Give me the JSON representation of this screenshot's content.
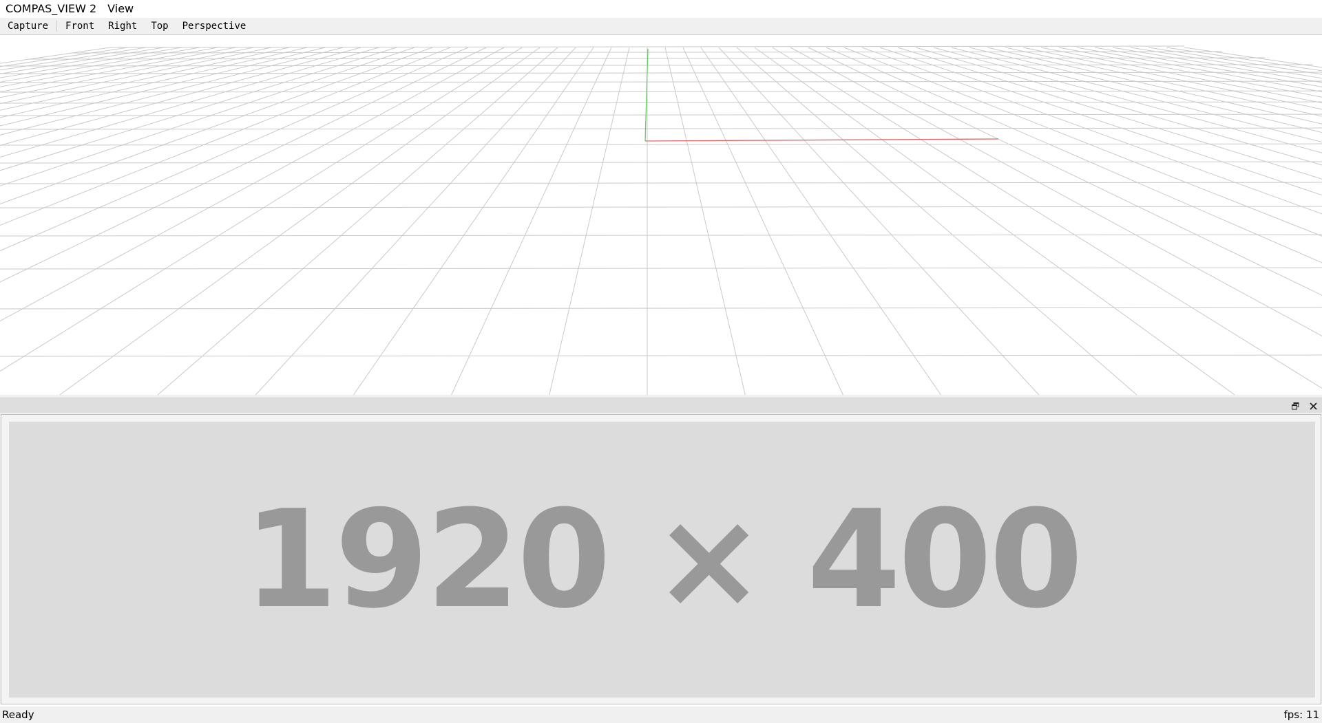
{
  "menubar": {
    "items": [
      {
        "label": "COMPAS_VIEW 2"
      },
      {
        "label": "View"
      }
    ]
  },
  "toolbar": {
    "items": [
      {
        "label": "Capture"
      },
      {
        "label": "Front"
      },
      {
        "label": "Right"
      },
      {
        "label": "Top"
      },
      {
        "label": "Perspective"
      }
    ]
  },
  "viewport": {
    "grid_color": "#c9c9c9",
    "x_axis_color": "#e06666",
    "y_axis_color": "#66cc66"
  },
  "dock": {
    "float_icon": "float-icon",
    "close_icon": "close-icon",
    "placeholder_text": "1920 × 400",
    "placeholder_bg": "#dcdcdc",
    "placeholder_fg": "#999999"
  },
  "statusbar": {
    "left": "Ready",
    "right": "fps: 11"
  }
}
